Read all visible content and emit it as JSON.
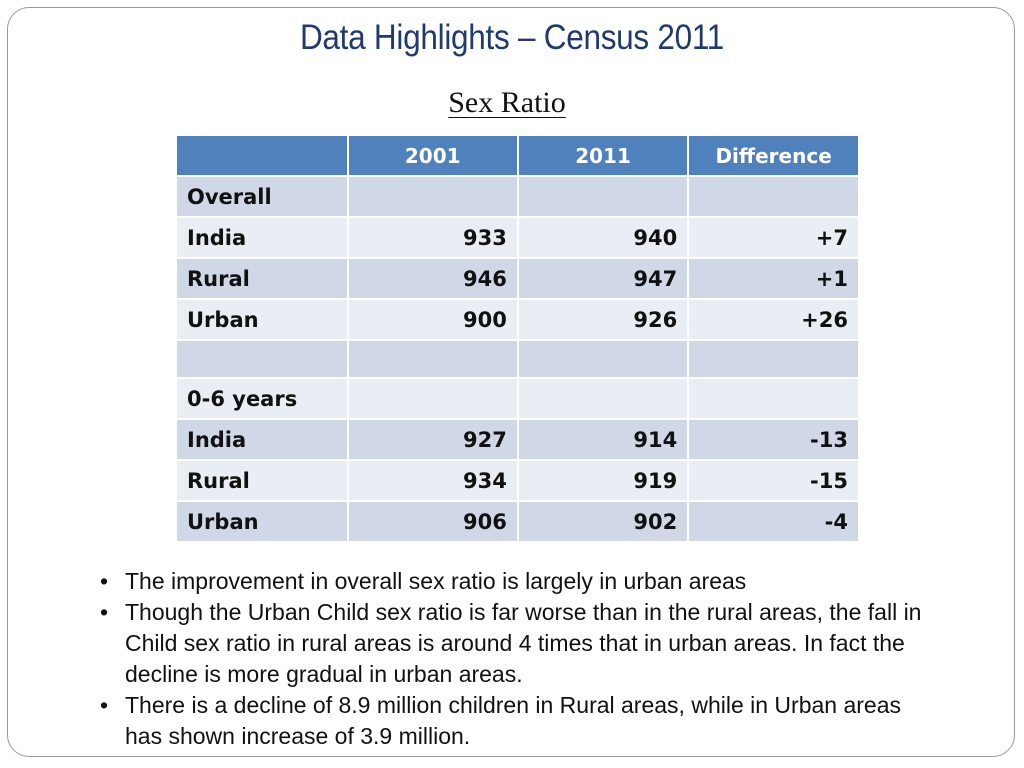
{
  "title": "Data Highlights – Census 2011",
  "subtitle": "Sex Ratio",
  "table": {
    "headers": [
      "",
      "2001",
      "2011",
      "Difference"
    ],
    "rows": [
      {
        "label": "Overall",
        "v2001": "",
        "v2011": "",
        "diff": ""
      },
      {
        "label": "India",
        "v2001": "933",
        "v2011": "940",
        "diff": "+7"
      },
      {
        "label": "Rural",
        "v2001": "946",
        "v2011": "947",
        "diff": "+1"
      },
      {
        "label": "Urban",
        "v2001": "900",
        "v2011": "926",
        "diff": "+26"
      },
      {
        "label": "",
        "v2001": "",
        "v2011": "",
        "diff": ""
      },
      {
        "label": "0-6 years",
        "v2001": "",
        "v2011": "",
        "diff": ""
      },
      {
        "label": "India",
        "v2001": "927",
        "v2011": "914",
        "diff": "-13"
      },
      {
        "label": "Rural",
        "v2001": "934",
        "v2011": "919",
        "diff": "-15"
      },
      {
        "label": "Urban",
        "v2001": "906",
        "v2011": "902",
        "diff": "-4"
      }
    ]
  },
  "notes": [
    "The improvement in overall sex ratio is largely in urban areas",
    "Though the Urban Child sex ratio is far worse than in the rural areas, the fall in Child sex ratio in rural areas is around 4 times that in urban areas.  In fact the decline is more gradual in urban areas.",
    "There is a decline of  8.9 million children in Rural areas, while in Urban areas has shown increase of 3.9 million."
  ],
  "colors": {
    "title": "#203a6e",
    "header_bg": "#4f81bd",
    "row_dark": "#d0d8e8",
    "row_light": "#e9edf4"
  }
}
